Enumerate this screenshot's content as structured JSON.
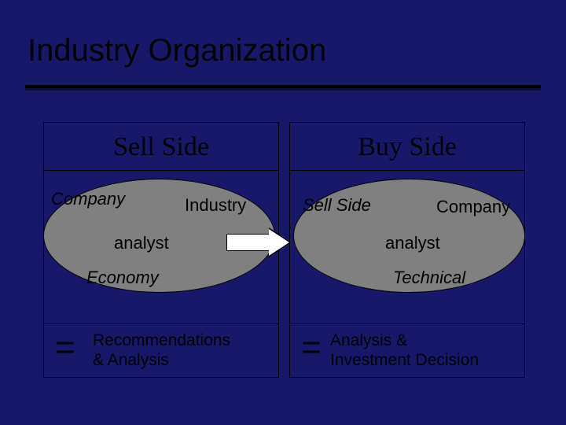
{
  "title": "Industry Organization",
  "background_color": "#18186b",
  "rule_color": "#000000",
  "rule_shadow": "#0c0c3a",
  "ellipse_fill": "#808080",
  "border_color": "#000000",
  "arrow_fill": "#ffffff",
  "left": {
    "heading": "Sell Side",
    "top_left": "Company",
    "top_right": "Industry",
    "center": "analyst",
    "bottom": "Economy",
    "equals": "=",
    "result_line1": "Recommendations",
    "result_line2": "& Analysis"
  },
  "right": {
    "heading": "Buy Side",
    "top_left": "Sell Side",
    "top_right": "Company",
    "center": "analyst",
    "bottom": "Technical",
    "equals": "=",
    "result_line1": "Analysis &",
    "result_line2": "Investment Decision"
  }
}
